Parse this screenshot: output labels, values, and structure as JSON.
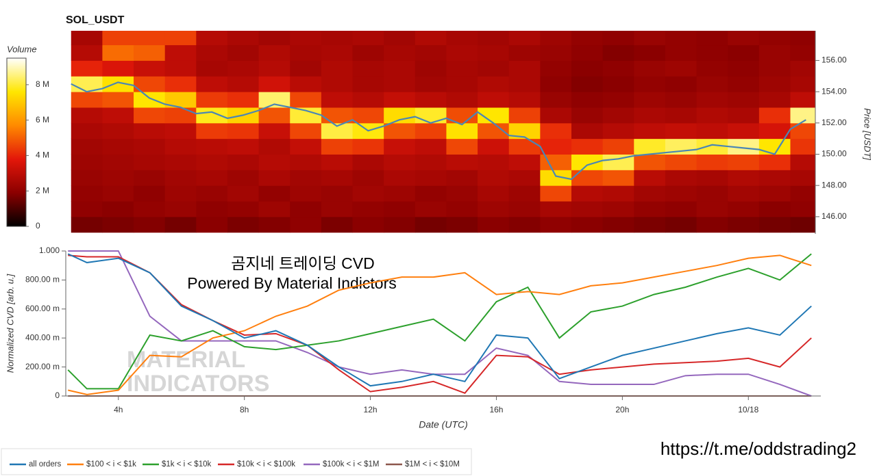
{
  "chart_data": [
    {
      "type": "heatmap",
      "title": "SOL_USDT",
      "ylabel": "Price [USDT]",
      "x": [
        3,
        4,
        5,
        6,
        7,
        8,
        9,
        10,
        11,
        12,
        13,
        14,
        15,
        16,
        17,
        18,
        19,
        20,
        21,
        22,
        23,
        24,
        25,
        26
      ],
      "y": [
        145.5,
        146.5,
        147.5,
        148.5,
        149.5,
        150.5,
        151.5,
        152.5,
        153.5,
        154.5,
        155.5,
        156.5,
        157.5
      ],
      "z": [
        [
          1600000.0,
          1700000.0,
          1800000.0,
          1600000.0,
          1900000.0,
          1700000.0,
          1800000.0,
          2000000.0,
          1700000.0,
          1900000.0,
          1800000.0,
          1600000.0,
          1700000.0,
          1900000.0,
          1800000.0,
          2000000.0,
          1900000.0,
          1800000.0,
          1700000.0,
          1600000.0,
          1800000.0,
          1700000.0,
          1600000.0,
          1500000.0
        ],
        [
          2000000.0,
          1900000.0,
          2100000.0,
          2200000.0,
          2000000.0,
          2100000.0,
          2300000.0,
          2000000.0,
          2200000.0,
          2100000.0,
          2000000.0,
          2200000.0,
          2100000.0,
          2300000.0,
          2200000.0,
          2500000.0,
          2400000.0,
          2300000.0,
          2100000.0,
          2000000.0,
          2200000.0,
          2100000.0,
          1900000.0,
          2000000.0
        ],
        [
          2100000.0,
          2200000.0,
          2000000.0,
          2300000.0,
          2200000.0,
          2400000.0,
          2100000.0,
          2300000.0,
          2200000.0,
          2400000.0,
          2300000.0,
          2100000.0,
          2200000.0,
          2500000.0,
          2300000.0,
          4600000.0,
          2800000.0,
          2700000.0,
          2400000.0,
          2300000.0,
          2200000.0,
          2400000.0,
          2300000.0,
          2100000.0
        ],
        [
          2200000.0,
          2300000.0,
          2200000.0,
          2400000.0,
          2500000.0,
          2300000.0,
          2600000.0,
          2400000.0,
          2500000.0,
          2300000.0,
          2600000.0,
          2500000.0,
          2400000.0,
          2700000.0,
          2600000.0,
          7400000.0,
          4600000.0,
          4800000.0,
          2900000.0,
          2600000.0,
          2500000.0,
          2700000.0,
          2600000.0,
          2500000.0
        ],
        [
          2300000.0,
          2400000.0,
          2500000.0,
          2600000.0,
          2700000.0,
          2600000.0,
          2800000.0,
          2700000.0,
          2900000.0,
          2600000.0,
          2800000.0,
          2700000.0,
          2900000.0,
          2800000.0,
          3000000.0,
          5000000.0,
          7600000.0,
          8200000.0,
          4800000.0,
          4600000.0,
          4400000.0,
          4500000.0,
          4200000.0,
          2800000.0
        ],
        [
          2400000.0,
          2500000.0,
          2600000.0,
          2800000.0,
          2900000.0,
          3000000.0,
          2700000.0,
          3100000.0,
          4500000.0,
          4300000.0,
          3200000.0,
          3000000.0,
          4600000.0,
          3300000.0,
          4400000.0,
          4000000.0,
          4200000.0,
          4500000.0,
          7900000.0,
          8300000.0,
          8000000.0,
          8600000.0,
          7600000.0,
          4300000.0
        ],
        [
          2600000.0,
          2700000.0,
          2900000.0,
          3000000.0,
          4400000.0,
          4300000.0,
          3200000.0,
          4600000.0,
          8100000.0,
          7700000.0,
          4800000.0,
          4500000.0,
          7500000.0,
          4800000.0,
          7200000.0,
          4200000.0,
          2600000.0,
          2800000.0,
          3000000.0,
          3100000.0,
          3000000.0,
          3200000.0,
          3500000.0,
          4600000.0
        ],
        [
          2800000.0,
          3000000.0,
          4600000.0,
          4500000.0,
          7800000.0,
          7200000.0,
          4800000.0,
          8000000.0,
          4800000.0,
          4600000.0,
          7400000.0,
          7900000.0,
          4700000.0,
          7600000.0,
          4500000.0,
          2600000.0,
          2200000.0,
          2400000.0,
          2600000.0,
          2500000.0,
          2700000.0,
          2600000.0,
          4200000.0,
          8600000.0
        ],
        [
          4600000.0,
          4800000.0,
          7600000.0,
          7000000.0,
          4400000.0,
          4200000.0,
          8400000.0,
          4600000.0,
          3000000.0,
          2800000.0,
          3100000.0,
          2900000.0,
          2700000.0,
          3000000.0,
          2800000.0,
          2200000.0,
          2000000.0,
          2100000.0,
          2300000.0,
          2200000.0,
          2400000.0,
          2300000.0,
          2500000.0,
          3000000.0
        ],
        [
          8200000.0,
          7500000.0,
          4600000.0,
          4200000.0,
          3000000.0,
          2800000.0,
          3400000.0,
          2900000.0,
          2700000.0,
          2500000.0,
          2600000.0,
          2400000.0,
          2500000.0,
          2700000.0,
          2600000.0,
          2000000.0,
          1800000.0,
          1900000.0,
          2100000.0,
          2000000.0,
          2200000.0,
          2100000.0,
          2300000.0,
          2500000.0
        ],
        [
          4000000.0,
          3600000.0,
          3200000.0,
          3000000.0,
          2500000.0,
          2600000.0,
          2800000.0,
          2400000.0,
          2700000.0,
          2500000.0,
          2600000.0,
          2300000.0,
          2500000.0,
          2400000.0,
          2600000.0,
          2100000.0,
          1900000.0,
          2000000.0,
          2200000.0,
          2300000.0,
          2100000.0,
          2000000.0,
          2200000.0,
          2400000.0
        ],
        [
          2800000.0,
          5200000.0,
          5000000.0,
          3000000.0,
          2600000.0,
          2400000.0,
          2700000.0,
          2500000.0,
          2600000.0,
          2300000.0,
          2500000.0,
          2400000.0,
          2600000.0,
          2500000.0,
          2300000.0,
          2200000.0,
          2000000.0,
          1800000.0,
          1900000.0,
          2100000.0,
          2000000.0,
          1900000.0,
          2200000.0,
          2100000.0
        ],
        [
          2500000.0,
          4500000.0,
          4500000.0,
          4500000.0,
          2800000.0,
          2600000.0,
          2400000.0,
          2600000.0,
          2500000.0,
          2600000.0,
          2400000.0,
          2700000.0,
          2500000.0,
          2400000.0,
          2600000.0,
          2300000.0,
          2100000.0,
          2000000.0,
          2200000.0,
          2100000.0,
          2000000.0,
          2200000.0,
          2100000.0,
          2000000.0
        ]
      ],
      "xlim": [
        2.33,
        26.3
      ],
      "ylim": [
        144.9,
        157.9
      ],
      "yticks": [
        {
          "value": 146,
          "label": "146.00"
        },
        {
          "value": 148,
          "label": "148.00"
        },
        {
          "value": 150,
          "label": "150.00"
        },
        {
          "value": 152,
          "label": "152.00"
        },
        {
          "value": 154,
          "label": "154.00"
        },
        {
          "value": 156,
          "label": "156.00"
        }
      ],
      "colorbar": {
        "title": "Volume",
        "lim": [
          0,
          9500000.0
        ],
        "ticks": [
          0,
          {
            "value": 2000000.0,
            "label": "2 M"
          },
          {
            "value": 4000000.0,
            "label": "4 M"
          },
          {
            "value": 6000000.0,
            "label": "6 M"
          },
          {
            "value": 8000000.0,
            "label": "8 M"
          }
        ],
        "colors": [
          "#000000",
          "#8b0000",
          "#e3170a",
          "#ff8a00",
          "#ffe600",
          "#ffffff"
        ]
      },
      "line": {
        "color": "#4a86b5",
        "x": [
          2.5,
          3,
          3.5,
          4,
          4.5,
          5,
          5.5,
          6,
          6.5,
          7,
          7.5,
          8,
          8.5,
          9,
          9.5,
          10,
          10.5,
          11,
          11.5,
          12,
          12.5,
          13,
          13.5,
          14,
          14.5,
          15,
          15.5,
          16,
          16.5,
          17,
          17.5,
          18,
          18.5,
          19,
          19.5,
          20,
          20.5,
          21,
          21.5,
          22,
          22.5,
          23,
          23.5,
          24,
          24.5,
          25,
          25.5,
          26
        ],
        "values": [
          154.5,
          154.0,
          154.2,
          154.6,
          154.4,
          153.6,
          153.2,
          153.0,
          152.6,
          152.7,
          152.3,
          152.5,
          152.8,
          153.2,
          153.0,
          152.8,
          152.5,
          151.8,
          152.2,
          151.5,
          151.8,
          152.2,
          152.4,
          152.0,
          152.3,
          151.9,
          152.7,
          152.0,
          151.2,
          151.1,
          150.5,
          148.6,
          148.4,
          149.3,
          149.6,
          149.7,
          149.9,
          150.0,
          150.1,
          150.2,
          150.3,
          150.6,
          150.5,
          150.4,
          150.3,
          150.0,
          151.6,
          152.2
        ]
      }
    },
    {
      "type": "line",
      "xlabel": "Date (UTC)",
      "ylabel": "Normalized CVD [arb. u.]",
      "annotations": [
        "곰지네 트레이딩 CVD",
        "Powered By Material Indictors"
      ],
      "watermark": [
        "MATERIAL",
        "INDICATORS"
      ],
      "x": [
        2.4,
        3,
        4,
        5,
        6,
        7,
        8,
        9,
        10,
        11,
        12,
        13,
        14,
        15,
        16,
        17,
        18,
        19,
        20,
        21,
        22,
        23,
        24,
        25,
        26
      ],
      "xlim": [
        2.33,
        26.3
      ],
      "ylim": [
        0,
        1
      ],
      "xticks": [
        {
          "value": 4,
          "label": "4h"
        },
        {
          "value": 8,
          "label": "8h"
        },
        {
          "value": 12,
          "label": "12h"
        },
        {
          "value": 16,
          "label": "16h"
        },
        {
          "value": 20,
          "label": "20h"
        },
        {
          "value": 24,
          "label": "10/18"
        }
      ],
      "yticks": [
        0,
        {
          "value": 0.2,
          "label": "200.00 m"
        },
        {
          "value": 0.4,
          "label": "400.00 m"
        },
        {
          "value": 0.6,
          "label": "600.00 m"
        },
        {
          "value": 0.8,
          "label": "800.00 m"
        },
        {
          "value": 1,
          "label": "1.000"
        }
      ],
      "legend": "bottom",
      "series": [
        {
          "name": "all orders",
          "color": "#1f77b4",
          "values": [
            0.98,
            0.92,
            0.95,
            0.85,
            0.62,
            0.52,
            0.4,
            0.45,
            0.35,
            0.2,
            0.07,
            0.1,
            0.15,
            0.1,
            0.42,
            0.4,
            0.12,
            0.2,
            0.28,
            0.33,
            0.38,
            0.43,
            0.47,
            0.42,
            0.62
          ]
        },
        {
          "name": "$100 < i < $1k",
          "color": "#ff7f0e",
          "values": [
            0.04,
            0.01,
            0.04,
            0.28,
            0.27,
            0.4,
            0.45,
            0.55,
            0.62,
            0.73,
            0.78,
            0.82,
            0.82,
            0.85,
            0.7,
            0.72,
            0.7,
            0.76,
            0.78,
            0.82,
            0.86,
            0.9,
            0.95,
            0.97,
            0.9
          ]
        },
        {
          "name": "$1k < i < $10k",
          "color": "#2ca02c",
          "values": [
            0.18,
            0.05,
            0.05,
            0.42,
            0.38,
            0.45,
            0.34,
            0.32,
            0.35,
            0.38,
            0.43,
            0.48,
            0.53,
            0.38,
            0.65,
            0.75,
            0.4,
            0.58,
            0.62,
            0.7,
            0.75,
            0.82,
            0.88,
            0.8,
            0.98
          ]
        },
        {
          "name": "$10k < i < $100k",
          "color": "#d62728",
          "values": [
            0.97,
            0.96,
            0.96,
            0.85,
            0.63,
            0.52,
            0.42,
            0.43,
            0.35,
            0.18,
            0.03,
            0.06,
            0.1,
            0.02,
            0.28,
            0.27,
            0.15,
            0.18,
            0.2,
            0.22,
            0.23,
            0.24,
            0.26,
            0.2,
            0.4
          ]
        },
        {
          "name": "$100k < i < $1M",
          "color": "#9467bd",
          "values": [
            1,
            1,
            1,
            0.55,
            0.38,
            0.38,
            0.38,
            0.38,
            0.3,
            0.2,
            0.15,
            0.18,
            0.15,
            0.15,
            0.33,
            0.28,
            0.1,
            0.08,
            0.08,
            0.08,
            0.14,
            0.15,
            0.15,
            0.08,
            0
          ]
        },
        {
          "name": "$1M < i < $10M",
          "color": "#8c564b",
          "values": [
            0,
            0,
            0,
            0,
            0,
            0,
            0,
            0,
            0,
            0,
            0,
            0,
            0,
            0,
            0,
            0,
            0,
            0,
            0,
            0,
            0,
            0,
            0,
            0,
            0
          ]
        }
      ]
    }
  ],
  "footer": "https://t.me/oddstrading2"
}
